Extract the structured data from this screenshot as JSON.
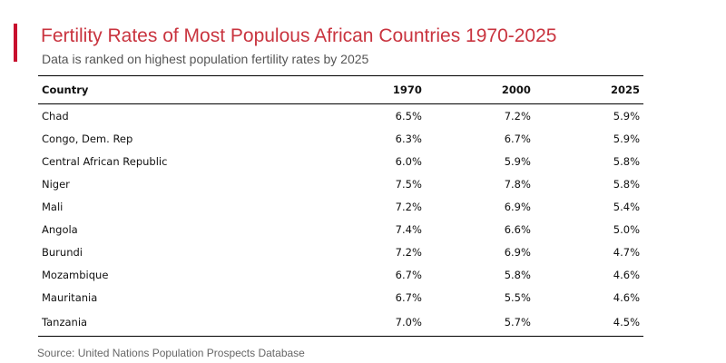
{
  "chart_data": {
    "type": "table",
    "title": "Fertility Rates of Most Populous African Countries 1970-2025",
    "subtitle": "Data is ranked on highest population fertility rates by 2025",
    "columns": [
      "Country",
      "1970",
      "2000",
      "2025"
    ],
    "rows": [
      [
        "Chad",
        "6.5%",
        "7.2%",
        "5.9%"
      ],
      [
        "Congo, Dem. Rep",
        "6.3%",
        "6.7%",
        "5.9%"
      ],
      [
        "Central African Republic",
        "6.0%",
        "5.9%",
        "5.8%"
      ],
      [
        "Niger",
        "7.5%",
        "7.8%",
        "5.8%"
      ],
      [
        "Mali",
        "7.2%",
        "6.9%",
        "5.4%"
      ],
      [
        "Angola",
        "7.4%",
        "6.6%",
        "5.0%"
      ],
      [
        "Burundi",
        "7.2%",
        "6.9%",
        "4.7%"
      ],
      [
        "Mozambique",
        "6.7%",
        "5.8%",
        "4.6%"
      ],
      [
        "Mauritania",
        "6.7%",
        "5.5%",
        "4.6%"
      ],
      [
        "Tanzania",
        "7.0%",
        "5.7%",
        "4.5%"
      ]
    ],
    "source": "Source: United Nations Population Prospects Database"
  },
  "colors": {
    "accent": "#c8102e",
    "title": "#c9343f"
  }
}
